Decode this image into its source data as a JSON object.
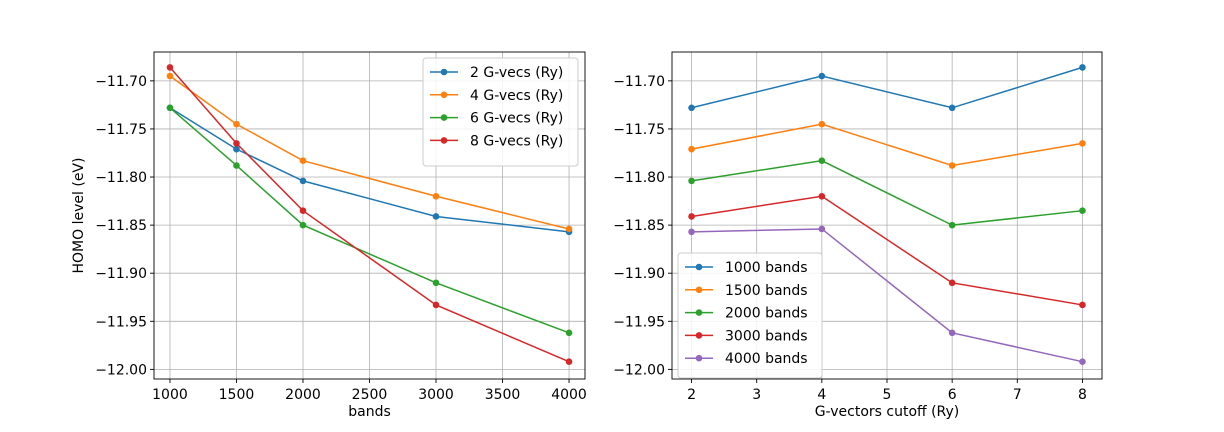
{
  "colors": [
    "#1f77b4",
    "#ff7f0e",
    "#2ca02c",
    "#d62728",
    "#9467bd"
  ],
  "chart_data": [
    {
      "type": "line",
      "title": "",
      "xlabel": "bands",
      "ylabel": "HOMO level (eV)",
      "xlim": [
        880,
        4120
      ],
      "ylim": [
        -12.01,
        -11.67
      ],
      "xticks": [
        1000,
        1500,
        2000,
        2500,
        3000,
        3500,
        4000
      ],
      "xtick_labels": [
        "1000",
        "1500",
        "2000",
        "2500",
        "3000",
        "3500",
        "4000"
      ],
      "yticks": [
        -12.0,
        -11.95,
        -11.9,
        -11.85,
        -11.8,
        -11.75,
        -11.7
      ],
      "ytick_labels": [
        "−12.00",
        "−11.95",
        "−11.90",
        "−11.85",
        "−11.80",
        "−11.75",
        "−11.70"
      ],
      "grid": true,
      "legend_position": "top-right",
      "x": [
        1000,
        1500,
        2000,
        3000,
        4000
      ],
      "series": [
        {
          "name": "2 G-vecs (Ry)",
          "values": [
            -11.728,
            -11.771,
            -11.804,
            -11.841,
            -11.857
          ]
        },
        {
          "name": "4 G-vecs (Ry)",
          "values": [
            -11.695,
            -11.745,
            -11.783,
            -11.82,
            -11.854
          ]
        },
        {
          "name": "6 G-vecs (Ry)",
          "values": [
            -11.728,
            -11.788,
            -11.85,
            -11.91,
            -11.962
          ]
        },
        {
          "name": "8 G-vecs (Ry)",
          "values": [
            -11.686,
            -11.765,
            -11.835,
            -11.933,
            -11.992
          ]
        }
      ]
    },
    {
      "type": "line",
      "title": "",
      "xlabel": "G-vectors cutoff (Ry)",
      "ylabel": "",
      "xlim": [
        1.7,
        8.3
      ],
      "ylim": [
        -12.01,
        -11.67
      ],
      "xticks": [
        2,
        3,
        4,
        5,
        6,
        7,
        8
      ],
      "xtick_labels": [
        "2",
        "3",
        "4",
        "5",
        "6",
        "7",
        "8"
      ],
      "yticks": [
        -12.0,
        -11.95,
        -11.9,
        -11.85,
        -11.8,
        -11.75,
        -11.7
      ],
      "ytick_labels": [
        "−12.00",
        "−11.95",
        "−11.90",
        "−11.85",
        "−11.80",
        "−11.75",
        "−11.70"
      ],
      "grid": true,
      "legend_position": "bottom-left",
      "x": [
        2,
        4,
        6,
        8
      ],
      "series": [
        {
          "name": "1000 bands",
          "values": [
            -11.728,
            -11.695,
            -11.728,
            -11.686
          ]
        },
        {
          "name": "1500 bands",
          "values": [
            -11.771,
            -11.745,
            -11.788,
            -11.765
          ]
        },
        {
          "name": "2000 bands",
          "values": [
            -11.804,
            -11.783,
            -11.85,
            -11.835
          ]
        },
        {
          "name": "3000 bands",
          "values": [
            -11.841,
            -11.82,
            -11.91,
            -11.933
          ]
        },
        {
          "name": "4000 bands",
          "values": [
            -11.857,
            -11.854,
            -11.962,
            -11.992
          ]
        }
      ]
    }
  ]
}
